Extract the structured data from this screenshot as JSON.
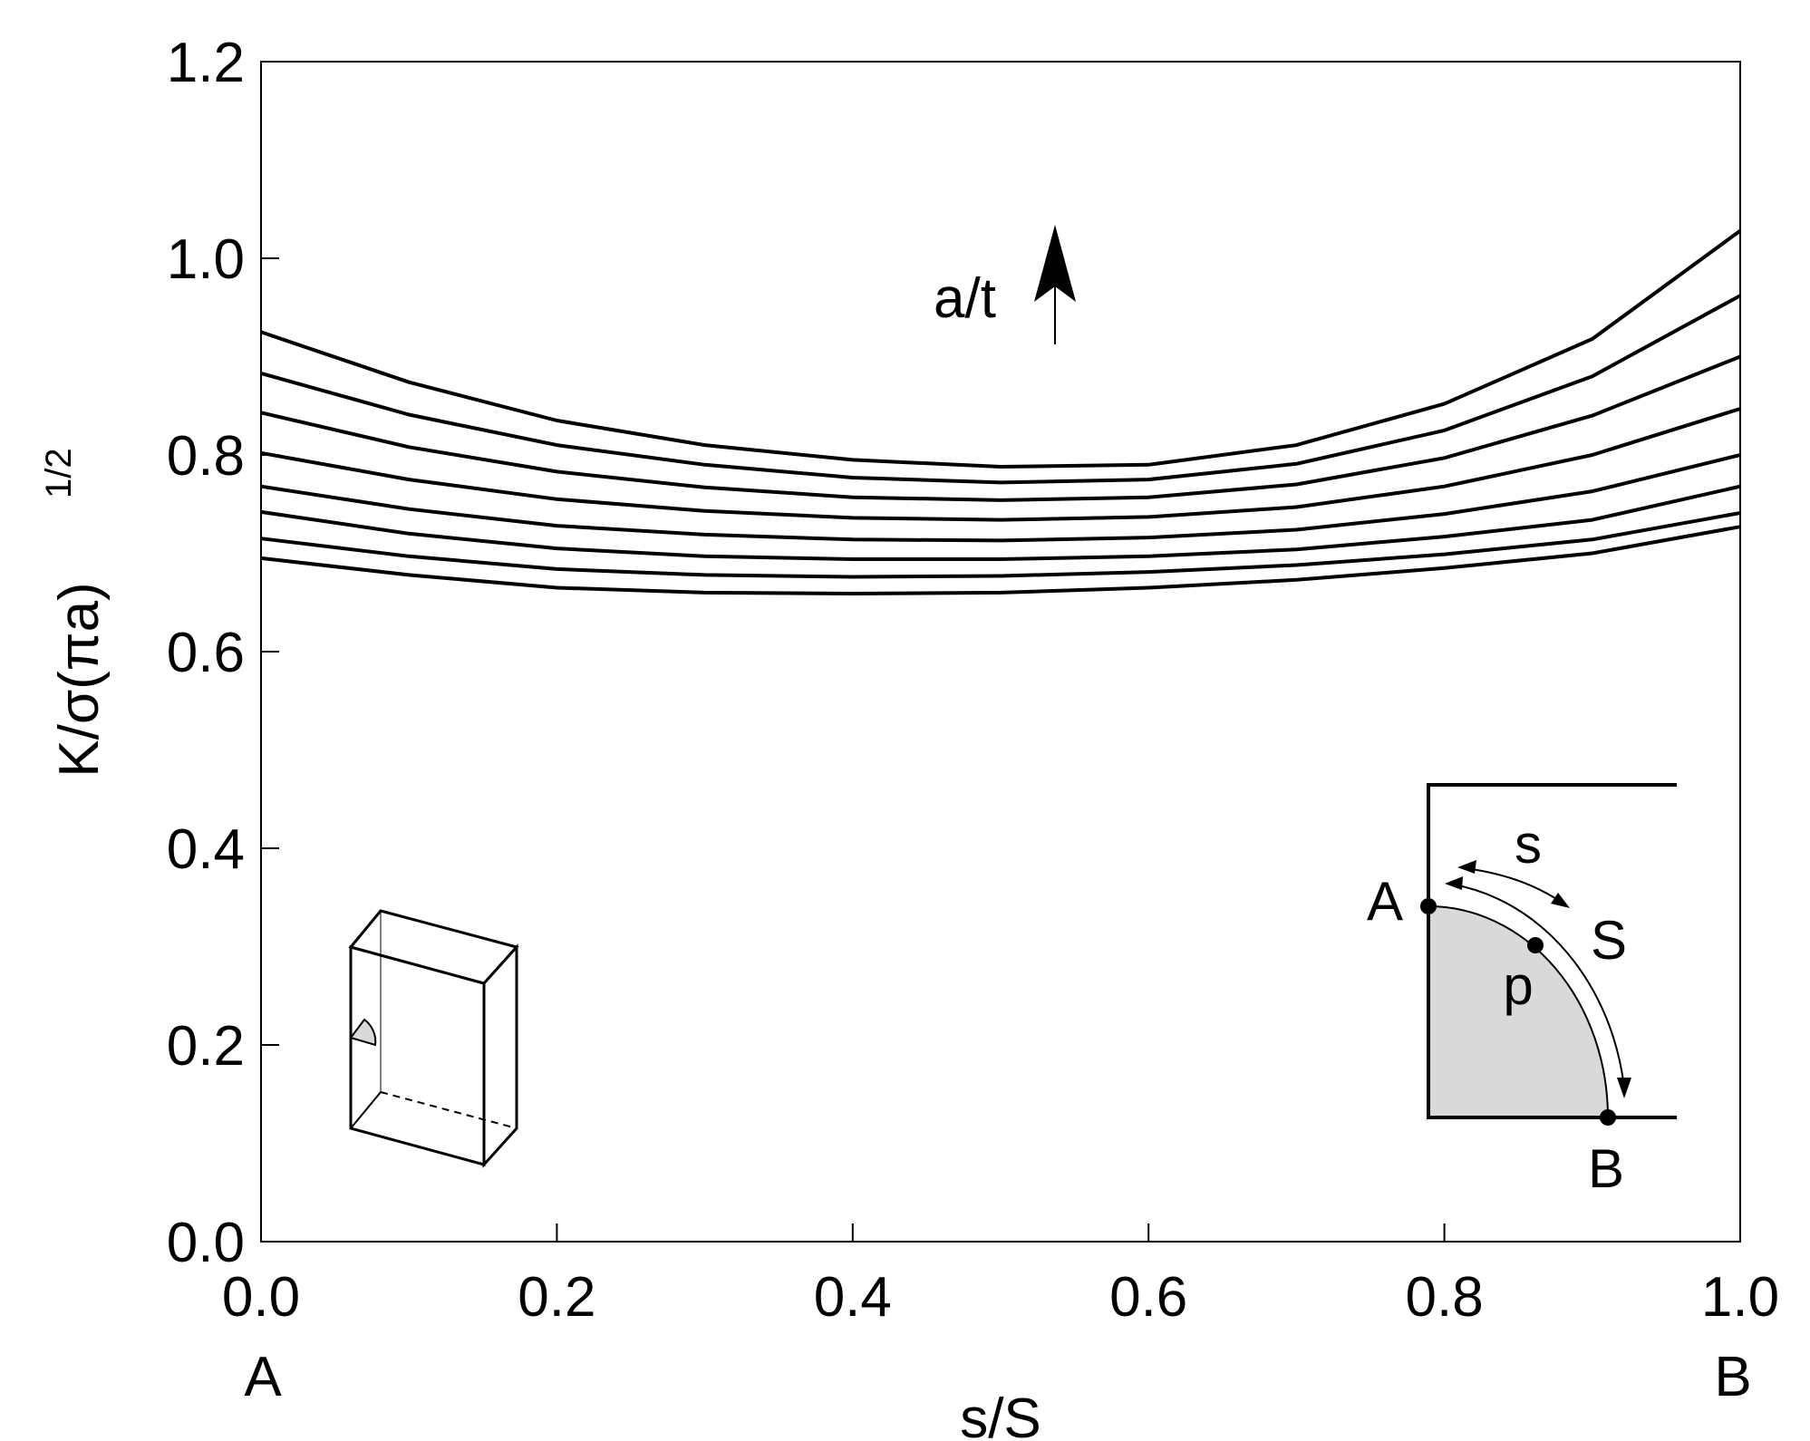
{
  "chart_data": {
    "type": "line",
    "xlabel": "s/S",
    "ylabel": "K/σ(πa)",
    "ylabel_superscript": "1/2",
    "xlim": [
      0.0,
      1.0
    ],
    "ylim": [
      0.0,
      1.2
    ],
    "x_ticks": [
      "0.0",
      "0.2",
      "0.4",
      "0.6",
      "0.8",
      "1.0"
    ],
    "y_ticks": [
      "0.0",
      "0.2",
      "0.4",
      "0.6",
      "0.8",
      "1.0",
      "1.2"
    ],
    "x_end_labels": {
      "left": "A",
      "right": "B"
    },
    "annotation": "a/t",
    "x": [
      0.0,
      0.1,
      0.2,
      0.3,
      0.4,
      0.5,
      0.6,
      0.7,
      0.8,
      0.9,
      1.0
    ],
    "series": [
      {
        "values": [
          0.695,
          0.678,
          0.665,
          0.66,
          0.659,
          0.66,
          0.665,
          0.673,
          0.685,
          0.7,
          0.727
        ]
      },
      {
        "values": [
          0.715,
          0.697,
          0.684,
          0.678,
          0.676,
          0.677,
          0.681,
          0.688,
          0.699,
          0.714,
          0.741
        ]
      },
      {
        "values": [
          0.742,
          0.72,
          0.705,
          0.697,
          0.694,
          0.694,
          0.697,
          0.704,
          0.717,
          0.734,
          0.768
        ]
      },
      {
        "values": [
          0.768,
          0.745,
          0.728,
          0.719,
          0.714,
          0.713,
          0.716,
          0.724,
          0.74,
          0.763,
          0.8
        ]
      },
      {
        "values": [
          0.802,
          0.775,
          0.755,
          0.743,
          0.736,
          0.734,
          0.737,
          0.747,
          0.768,
          0.8,
          0.847
        ]
      },
      {
        "values": [
          0.843,
          0.808,
          0.783,
          0.767,
          0.757,
          0.754,
          0.757,
          0.77,
          0.797,
          0.84,
          0.9
        ]
      },
      {
        "values": [
          0.883,
          0.841,
          0.81,
          0.79,
          0.777,
          0.772,
          0.775,
          0.791,
          0.825,
          0.88,
          0.962
        ]
      },
      {
        "values": [
          0.925,
          0.874,
          0.835,
          0.81,
          0.795,
          0.788,
          0.79,
          0.81,
          0.852,
          0.918,
          1.028
        ]
      }
    ]
  },
  "inset": {
    "point_labels": [
      "A",
      "p",
      "B"
    ],
    "arc_labels": [
      "s",
      "S"
    ]
  }
}
